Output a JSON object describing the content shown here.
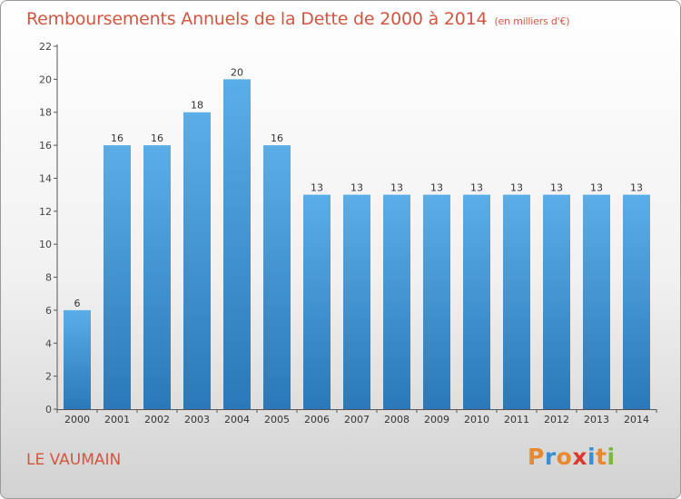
{
  "header": {
    "title": "Remboursements Annuels de la Dette de 2000 à 2014",
    "unit": "(en milliers d'€)"
  },
  "footer": {
    "commune": "LE VAUMAIN",
    "logo_text": "Proxiti",
    "logo_colors": [
      "#e8892f",
      "#3a8fd4",
      "#e8892f",
      "#d93a2f",
      "#3a8fd4",
      "#e8892f",
      "#7bb83a"
    ]
  },
  "colors": {
    "title": "#d2563f",
    "bar_light": "#5aaee8",
    "bar_dark": "#2a78b9",
    "axis": "#555555"
  },
  "chart_data": {
    "type": "bar",
    "title": "Remboursements Annuels de la Dette de 2000 à 2014",
    "xlabel": "",
    "ylabel": "",
    "categories": [
      "2000",
      "2001",
      "2002",
      "2003",
      "2004",
      "2005",
      "2006",
      "2007",
      "2008",
      "2009",
      "2010",
      "2011",
      "2012",
      "2013",
      "2014"
    ],
    "values": [
      6,
      16,
      16,
      18,
      20,
      16,
      13,
      13,
      13,
      13,
      13,
      13,
      13,
      13,
      13
    ],
    "ylim": [
      0,
      22
    ],
    "yticks": [
      0,
      2,
      4,
      6,
      8,
      10,
      12,
      14,
      16,
      18,
      20,
      22
    ],
    "grid": false,
    "data_labels": true
  }
}
